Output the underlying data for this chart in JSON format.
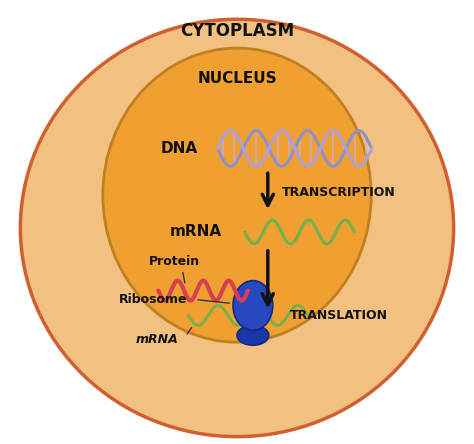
{
  "cytoplasm_color": "#F2C080",
  "cytoplasm_edge_color": "#D06030",
  "nucleus_color": "#F0A030",
  "nucleus_edge_color": "#C08020",
  "bg_color": "#FFFFFF",
  "cytoplasm_label": "CYTOPLASM",
  "nucleus_label": "NUCLEUS",
  "dna_label": "DNA",
  "mrna_label_nucleus": "mRNA",
  "transcription_label": "TRANSCRIPTION",
  "translation_label": "TRANSLATION",
  "protein_label": "Protein",
  "ribosome_label": "Ribosome",
  "mrna_label_cytoplasm": "mRNA",
  "dna_color_strand1": "#9090C8",
  "dna_color_strand2": "#B0A0D8",
  "dna_rung_color": "#C0B0E0",
  "mrna_color": "#70B050",
  "ribosome_large_color": "#2848C0",
  "ribosome_small_color": "#1838A8",
  "protein_color": "#D84050",
  "arrow_color": "#111111",
  "label_color": "#111111",
  "annot_line_color": "#333333"
}
